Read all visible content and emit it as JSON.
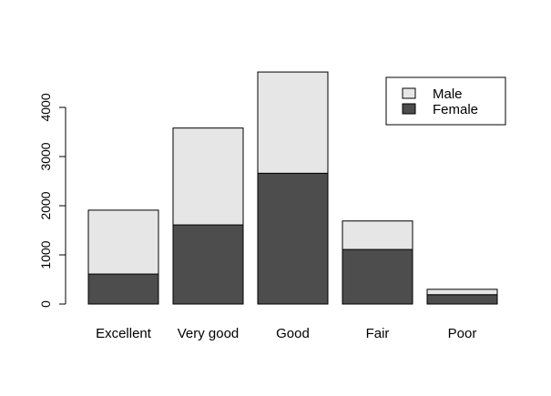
{
  "chart_data": {
    "type": "bar",
    "stacked": true,
    "categories": [
      "Excellent",
      "Very good",
      "Good",
      "Fair",
      "Poor"
    ],
    "series": [
      {
        "name": "Female",
        "values": [
          610,
          1610,
          2660,
          1110,
          190
        ],
        "color": "#4d4d4d"
      },
      {
        "name": "Male",
        "values": [
          1300,
          1970,
          2060,
          580,
          110
        ],
        "color": "#e6e6e6"
      }
    ],
    "ylim": [
      0,
      4740
    ],
    "yticks": [
      0,
      1000,
      2000,
      3000,
      4000
    ],
    "grid": false,
    "legend": {
      "placement": "top-right",
      "entries": [
        "Male",
        "Female"
      ]
    }
  }
}
